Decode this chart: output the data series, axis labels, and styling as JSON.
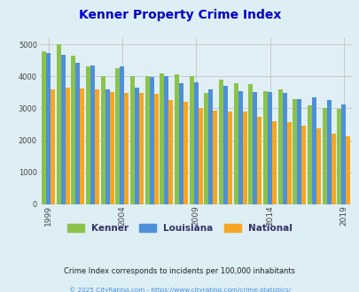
{
  "title": "Kenner Property Crime Index",
  "title_color": "#0000cc",
  "subtitle": "Crime Index corresponds to incidents per 100,000 inhabitants",
  "footer": "© 2025 CityRating.com - https://www.cityrating.com/crime-statistics/",
  "years": [
    1999,
    2000,
    2001,
    2002,
    2003,
    2004,
    2005,
    2006,
    2007,
    2008,
    2009,
    2010,
    2011,
    2012,
    2013,
    2014,
    2015,
    2016,
    2017,
    2018,
    2019
  ],
  "kenner": [
    4780,
    5000,
    4650,
    4300,
    4000,
    4250,
    4020,
    4000,
    4100,
    4050,
    4000,
    3490,
    3900,
    3780,
    3750,
    3550,
    3600,
    3300,
    3100,
    3000,
    2980
  ],
  "louisiana": [
    4720,
    4680,
    4430,
    4330,
    3600,
    4300,
    3650,
    3980,
    4020,
    3800,
    3820,
    3600,
    3700,
    3550,
    3500,
    3500,
    3490,
    3280,
    3350,
    3270,
    3120
  ],
  "national": [
    3600,
    3650,
    3620,
    3600,
    3500,
    3470,
    3470,
    3450,
    3250,
    3200,
    3020,
    2940,
    2900,
    2890,
    2750,
    2600,
    2580,
    2450,
    2380,
    2200,
    2120
  ],
  "kenner_color": "#8bc34a",
  "louisiana_color": "#4d90d9",
  "national_color": "#f5a623",
  "bg_color": "#ddeef5",
  "plot_bg": "#e0eff5",
  "ylim": [
    0,
    5200
  ],
  "yticks": [
    0,
    1000,
    2000,
    3000,
    4000,
    5000
  ],
  "xtick_labels": [
    "1999",
    "2004",
    "2009",
    "2014",
    "2019"
  ],
  "grid_color": "#bbbbbb"
}
